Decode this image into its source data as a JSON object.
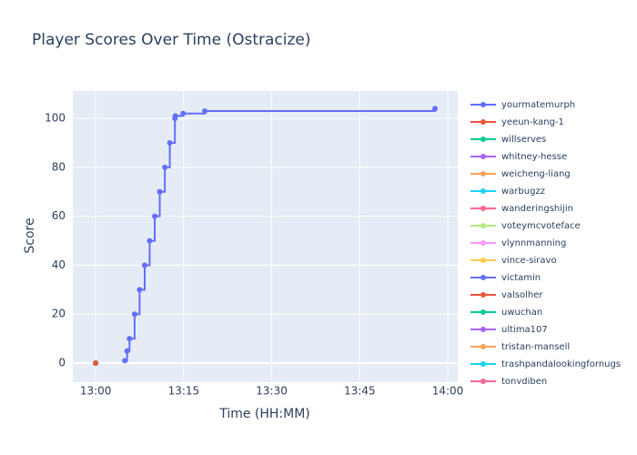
{
  "chart_data": {
    "type": "line",
    "title": "Player Scores Over Time (Ostracize)",
    "x_label": "Time (HH:MM)",
    "y_label": "Score",
    "xlim": [
      "12:56:06",
      "14:01:42"
    ],
    "ylim": [
      -7.8,
      111.2
    ],
    "xticks": [
      "13:00",
      "13:15",
      "13:30",
      "13:45",
      "14:00"
    ],
    "yticks": [
      0,
      20,
      40,
      60,
      80,
      100
    ],
    "grid": true,
    "line_shape": "hv",
    "legend": "right",
    "series": [
      {
        "name": "yourmatemurph",
        "color": "#636efa",
        "x": [
          "13:04:58",
          "13:05:21",
          "13:05:46",
          "13:06:38",
          "13:07:29",
          "13:08:21",
          "13:09:12",
          "13:10:04",
          "13:10:55",
          "13:11:47",
          "13:12:38",
          "13:13:30",
          "13:13:35",
          "13:14:54",
          "13:18:36",
          "13:57:50"
        ],
        "values": [
          1,
          5,
          10,
          20,
          30,
          40,
          50,
          60,
          70,
          80,
          90,
          100,
          101,
          102,
          103,
          104
        ]
      },
      {
        "name": "yeeun-kang-1",
        "color": "#EF553B",
        "x": [
          "13:00:00"
        ],
        "values": [
          0
        ]
      },
      {
        "name": "willserves",
        "color": "#00cc96",
        "x": [
          "13:00:00"
        ],
        "values": [
          0
        ]
      },
      {
        "name": "whitney-hesse",
        "color": "#ab63fa",
        "x": [
          "13:00:00"
        ],
        "values": [
          0
        ]
      },
      {
        "name": "weicheng-liang",
        "color": "#FFA15A",
        "x": [
          "13:00:00"
        ],
        "values": [
          0
        ]
      },
      {
        "name": "warbugzz",
        "color": "#19d3f3",
        "x": [
          "13:00:00"
        ],
        "values": [
          0
        ]
      },
      {
        "name": "wanderingshijin",
        "color": "#FF6692",
        "x": [
          "13:00:00"
        ],
        "values": [
          0
        ]
      },
      {
        "name": "voteymcvoteface",
        "color": "#B6E880",
        "x": [
          "13:00:00"
        ],
        "values": [
          0
        ]
      },
      {
        "name": "vlynnmanning",
        "color": "#FF97FF",
        "x": [
          "13:00:00"
        ],
        "values": [
          0
        ]
      },
      {
        "name": "vince-siravo",
        "color": "#FECB52",
        "x": [
          "13:00:00"
        ],
        "values": [
          0
        ]
      },
      {
        "name": "victamin",
        "color": "#636efa",
        "x": [
          "13:00:00"
        ],
        "values": [
          0
        ]
      },
      {
        "name": "valsolher",
        "color": "#EF553B",
        "x": [
          "13:00:00"
        ],
        "values": [
          0
        ]
      },
      {
        "name": "uwuchan",
        "color": "#00cc96",
        "x": [
          "13:00:00"
        ],
        "values": [
          0
        ]
      },
      {
        "name": "ultima107",
        "color": "#ab63fa",
        "x": [
          "13:00:00"
        ],
        "values": [
          0
        ]
      },
      {
        "name": "tristan-mansell",
        "color": "#FFA15A",
        "x": [
          "13:00:00"
        ],
        "values": [
          0
        ]
      },
      {
        "name": "trashpandalookingfornugs",
        "color": "#19d3f3",
        "x": [
          "13:00:00"
        ],
        "values": [
          0
        ]
      },
      {
        "name": "tonydiben",
        "color": "#FF6692",
        "x": [
          "13:00:00"
        ],
        "values": [
          0
        ]
      }
    ]
  }
}
